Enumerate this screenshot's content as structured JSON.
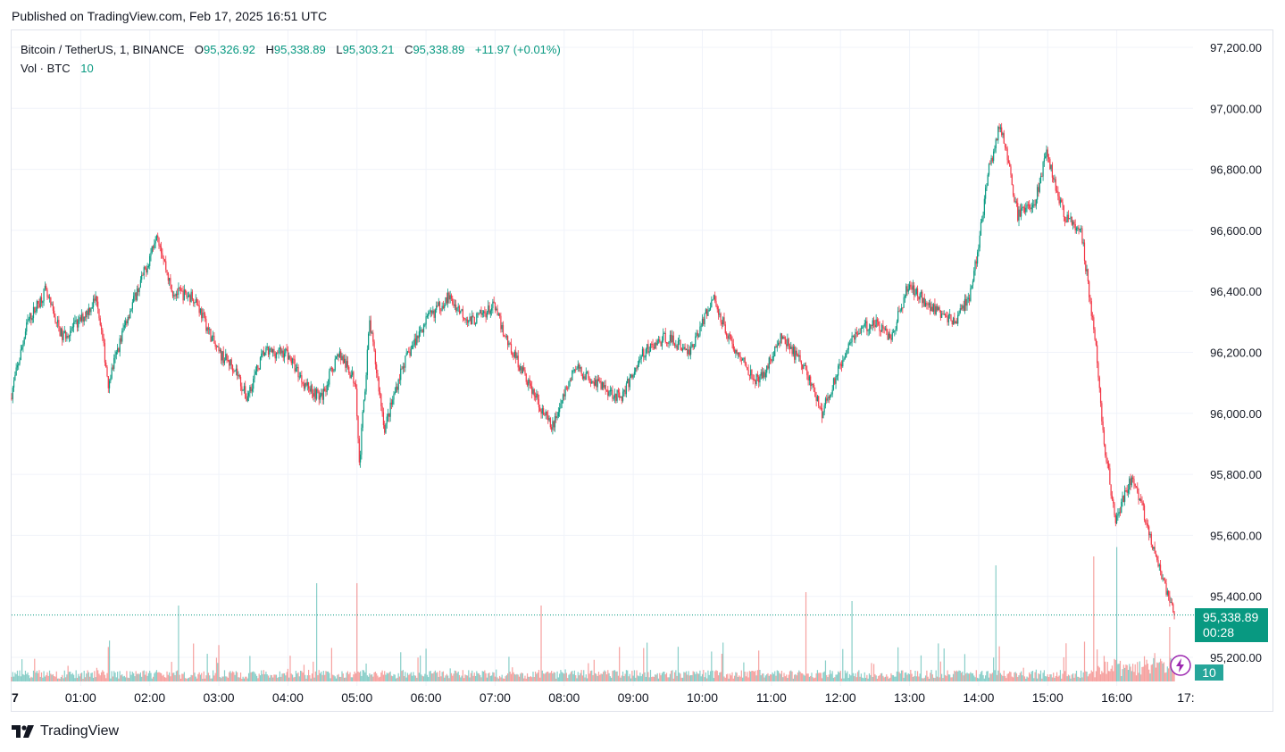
{
  "header": {
    "published": "Published on TradingView.com, Feb 17, 2025 16:51 UTC"
  },
  "legend": {
    "symbol": "Bitcoin / TetherUS, 1, BINANCE",
    "o_label": "O",
    "o_value": "95,326.92",
    "h_label": "H",
    "h_value": "95,338.89",
    "l_label": "L",
    "l_value": "95,303.21",
    "c_label": "C",
    "c_value": "95,338.89",
    "change": "+11.97 (+0.01%)",
    "vol_label": "Vol · BTC",
    "vol_value": "10"
  },
  "price_tag": {
    "price": "95,338.89",
    "countdown": "00:28"
  },
  "vol_tag": "10",
  "footer": {
    "brand": "TradingView"
  },
  "colors": {
    "up": "#089981",
    "down": "#f23645",
    "vol_up": "#26a69a",
    "vol_down": "#ef5350",
    "grid": "#f0f3fa"
  },
  "chart_data": {
    "type": "candlestick",
    "symbol": "Bitcoin / TetherUS",
    "interval": "1",
    "exchange": "BINANCE",
    "y_ticks": [
      "97,200.00",
      "97,000.00",
      "96,800.00",
      "96,600.00",
      "96,400.00",
      "96,200.00",
      "96,000.00",
      "95,800.00",
      "95,600.00",
      "95,400.00",
      "95,200.00"
    ],
    "x_ticks": [
      "7",
      "01:00",
      "02:00",
      "03:00",
      "04:00",
      "05:00",
      "06:00",
      "07:00",
      "08:00",
      "09:00",
      "10:00",
      "11:00",
      "12:00",
      "13:00",
      "14:00",
      "15:00",
      "16:00",
      "17:"
    ],
    "ylim": [
      95100,
      97250
    ],
    "last_price": 95338.89,
    "price_path": [
      [
        "00:00",
        96050
      ],
      [
        "00:15",
        96300
      ],
      [
        "00:30",
        96400
      ],
      [
        "00:45",
        96250
      ],
      [
        "01:00",
        96300
      ],
      [
        "01:15",
        96380
      ],
      [
        "01:25",
        96100
      ],
      [
        "01:40",
        96300
      ],
      [
        "02:00",
        96500
      ],
      [
        "02:07",
        96600
      ],
      [
        "02:20",
        96400
      ],
      [
        "02:40",
        96380
      ],
      [
        "03:00",
        96200
      ],
      [
        "03:15",
        96150
      ],
      [
        "03:25",
        96050
      ],
      [
        "03:40",
        96200
      ],
      [
        "04:00",
        96200
      ],
      [
        "04:15",
        96100
      ],
      [
        "04:30",
        96050
      ],
      [
        "04:45",
        96200
      ],
      [
        "05:00",
        96100
      ],
      [
        "05:03",
        95830
      ],
      [
        "05:12",
        96300
      ],
      [
        "05:25",
        95950
      ],
      [
        "05:40",
        96150
      ],
      [
        "06:00",
        96300
      ],
      [
        "06:20",
        96380
      ],
      [
        "06:40",
        96300
      ],
      [
        "07:00",
        96350
      ],
      [
        "07:10",
        96250
      ],
      [
        "07:30",
        96100
      ],
      [
        "07:50",
        95950
      ],
      [
        "08:10",
        96150
      ],
      [
        "08:30",
        96100
      ],
      [
        "08:50",
        96050
      ],
      [
        "09:10",
        96200
      ],
      [
        "09:30",
        96250
      ],
      [
        "09:50",
        96200
      ],
      [
        "10:10",
        96380
      ],
      [
        "10:30",
        96200
      ],
      [
        "10:50",
        96100
      ],
      [
        "11:10",
        96250
      ],
      [
        "11:30",
        96150
      ],
      [
        "11:45",
        96000
      ],
      [
        "12:10",
        96250
      ],
      [
        "12:30",
        96300
      ],
      [
        "12:45",
        96250
      ],
      [
        "13:00",
        96420
      ],
      [
        "13:20",
        96350
      ],
      [
        "13:40",
        96300
      ],
      [
        "13:55",
        96400
      ],
      [
        "14:10",
        96800
      ],
      [
        "14:20",
        96950
      ],
      [
        "14:35",
        96650
      ],
      [
        "14:50",
        96700
      ],
      [
        "15:00",
        96850
      ],
      [
        "15:15",
        96650
      ],
      [
        "15:30",
        96600
      ],
      [
        "15:42",
        96250
      ],
      [
        "15:50",
        95900
      ],
      [
        "16:00",
        95650
      ],
      [
        "16:15",
        95800
      ],
      [
        "16:30",
        95600
      ],
      [
        "16:45",
        95400
      ],
      [
        "16:51",
        95338.89
      ]
    ],
    "volume_spikes": [
      [
        "02:25",
        85
      ],
      [
        "04:25",
        110
      ],
      [
        "05:00",
        110
      ],
      [
        "07:40",
        85
      ],
      [
        "11:30",
        100
      ],
      [
        "12:10",
        90
      ],
      [
        "15:40",
        140
      ],
      [
        "14:15",
        130
      ],
      [
        "16:00",
        140
      ]
    ]
  }
}
